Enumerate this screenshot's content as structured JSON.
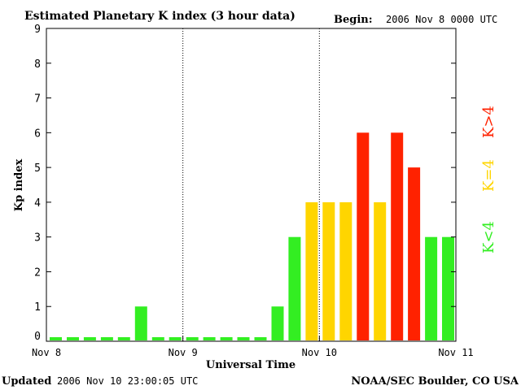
{
  "header": {
    "title": "Estimated Planetary K index (3 hour data)",
    "begin_label": "Begin:",
    "begin_value": "2006 Nov 8 0000 UTC"
  },
  "footer": {
    "updated_label": "Updated",
    "updated_value": "2006 Nov 10 23:00:05 UTC",
    "source": "NOAA/SEC Boulder, CO USA"
  },
  "legend": {
    "low": "K<4",
    "mid": "K=4",
    "high": "K>4"
  },
  "colors": {
    "low": "#33ee22",
    "mid": "#ffd500",
    "high": "#ff2200",
    "axis": "#000000"
  },
  "chart_data": {
    "type": "bar",
    "title": "Estimated Planetary K index (3 hour data)",
    "xlabel": "Universal Time",
    "ylabel": "Kp index",
    "ylim": [
      0,
      9
    ],
    "yticks": [
      "0",
      "1",
      "2",
      "3",
      "4",
      "5",
      "6",
      "7",
      "8",
      "9"
    ],
    "xticks": [
      "Nov 8",
      "Nov 9",
      "Nov 10",
      "Nov 11"
    ],
    "day_separators": [
      "Nov 9",
      "Nov 10"
    ],
    "interval_hours": 3,
    "values": [
      0,
      0,
      0,
      0,
      0,
      1,
      0,
      0,
      0,
      0,
      0,
      0,
      0,
      1,
      3,
      4,
      4,
      4,
      6,
      4,
      6,
      5,
      3,
      3
    ]
  }
}
